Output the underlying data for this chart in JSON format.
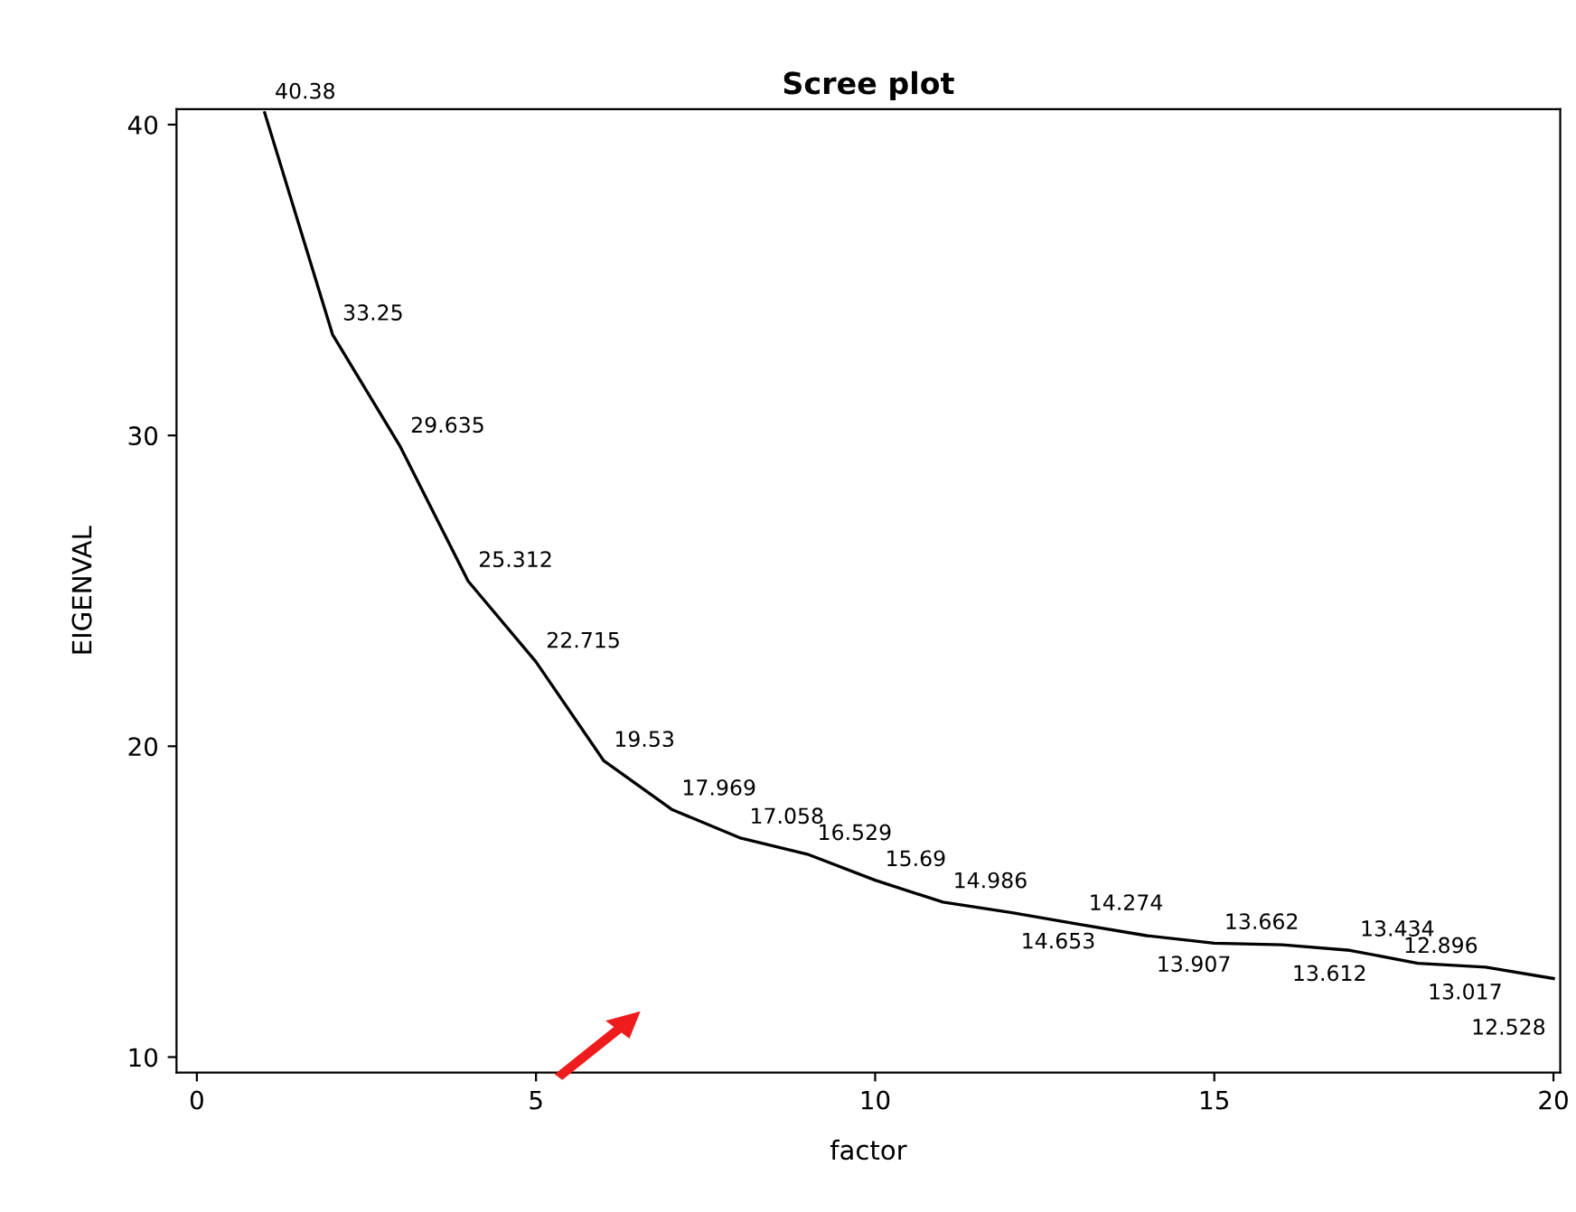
{
  "chart_data": {
    "type": "line",
    "title": "Scree plot",
    "xlabel": "factor",
    "ylabel": "EIGENVAL",
    "x": [
      1,
      2,
      3,
      4,
      5,
      6,
      7,
      8,
      9,
      10,
      11,
      12,
      13,
      14,
      15,
      16,
      17,
      18,
      19,
      20
    ],
    "values": [
      40.38,
      33.25,
      29.635,
      25.312,
      22.715,
      19.53,
      17.969,
      17.058,
      16.529,
      15.69,
      14.986,
      14.653,
      14.274,
      13.907,
      13.662,
      13.612,
      13.434,
      13.017,
      12.896,
      12.528
    ],
    "color": "#000000",
    "data_labels": true,
    "grid": false,
    "legend": false,
    "marker": "none",
    "line_style": "solid",
    "xlim": [
      -0.3,
      20.1
    ],
    "xticks": [
      0,
      5,
      10,
      15,
      20
    ],
    "ylim": [
      9.5,
      40.5
    ],
    "yticks": [
      10,
      20,
      30,
      40
    ]
  }
}
